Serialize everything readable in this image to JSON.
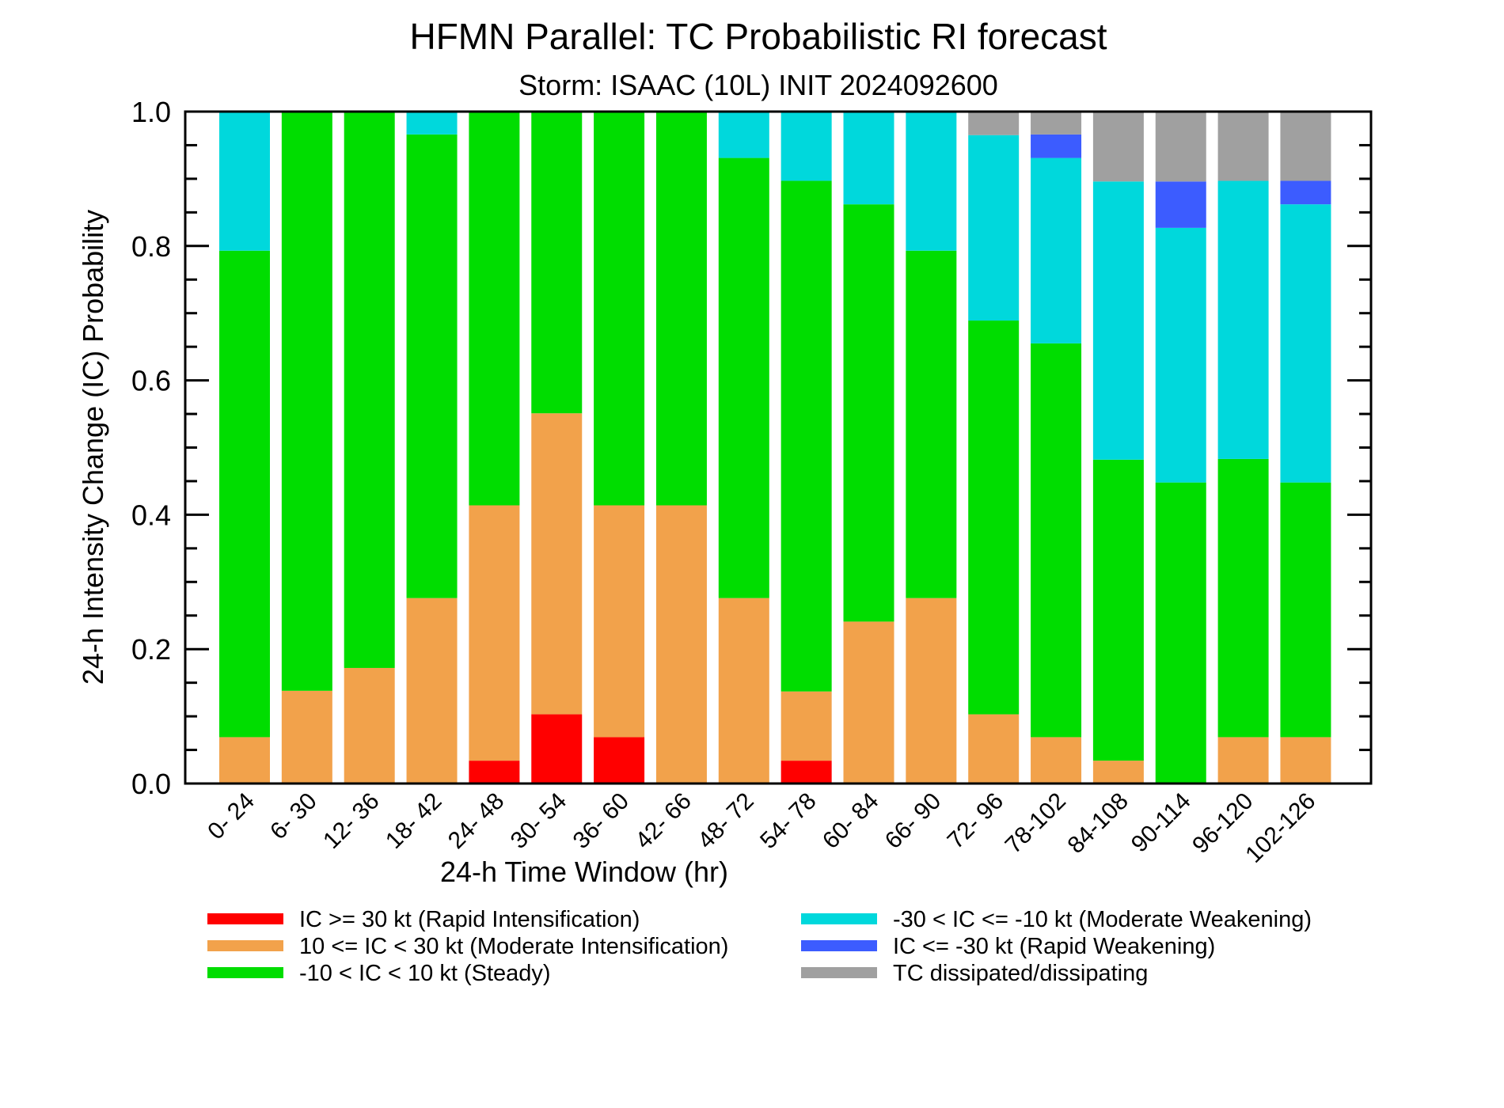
{
  "chart_data": {
    "type": "bar",
    "stacked": true,
    "title": "HFMN Parallel: TC Probabilistic RI forecast",
    "subtitle": "Storm: ISAAC (10L) INIT 2024092600",
    "xlabel": "24-h Time Window (hr)",
    "ylabel": "24-h Intensity Change (IC) Probability",
    "ylim": [
      0,
      1.0
    ],
    "yticks": [
      "0.0",
      "0.2",
      "0.4",
      "0.6",
      "0.8",
      "1.0"
    ],
    "categories": [
      "0- 24",
      "6- 30",
      "12- 36",
      "18- 42",
      "24- 48",
      "30- 54",
      "36- 60",
      "42- 66",
      "48- 72",
      "54- 78",
      "60- 84",
      "66- 90",
      "72- 96",
      "78-102",
      "84-108",
      "90-114",
      "96-120",
      "102-126"
    ],
    "series": [
      {
        "name": "IC >= 30 kt (Rapid Intensification)",
        "color": "#ff0000",
        "values": [
          0,
          0,
          0,
          0,
          0.034,
          0.103,
          0.069,
          0,
          0,
          0.034,
          0,
          0,
          0,
          0,
          0,
          0,
          0,
          0
        ]
      },
      {
        "name": "10 <= IC < 30 kt (Moderate Intensification)",
        "color": "#f2a24b",
        "values": [
          0.069,
          0.138,
          0.172,
          0.276,
          0.38,
          0.448,
          0.345,
          0.414,
          0.276,
          0.103,
          0.241,
          0.276,
          0.103,
          0.069,
          0.034,
          0,
          0.069,
          0.069
        ]
      },
      {
        "name": "-10 < IC < 10 kt (Steady)",
        "color": "#00dd00",
        "values": [
          0.724,
          0.862,
          0.828,
          0.69,
          0.586,
          0.449,
          0.586,
          0.586,
          0.655,
          0.76,
          0.621,
          0.517,
          0.586,
          0.586,
          0.448,
          0.448,
          0.414,
          0.379
        ]
      },
      {
        "name": "-30 < IC <= -10 kt (Moderate Weakening)",
        "color": "#00d8dc",
        "values": [
          0.207,
          0,
          0,
          0.034,
          0,
          0,
          0,
          0,
          0.069,
          0.103,
          0.138,
          0.207,
          0.276,
          0.276,
          0.414,
          0.379,
          0.414,
          0.414
        ]
      },
      {
        "name": "IC <= -30 kt (Rapid Weakening)",
        "color": "#3c5cff",
        "values": [
          0,
          0,
          0,
          0,
          0,
          0,
          0,
          0,
          0,
          0,
          0,
          0,
          0,
          0.035,
          0,
          0.069,
          0,
          0.035
        ]
      },
      {
        "name": "TC dissipated/dissipating",
        "color": "#a0a0a0",
        "values": [
          0,
          0,
          0,
          0,
          0,
          0,
          0,
          0,
          0,
          0,
          0,
          0,
          0.035,
          0.034,
          0.104,
          0.104,
          0.103,
          0.103
        ]
      }
    ],
    "legend_placement": "bottom",
    "grid": false
  }
}
